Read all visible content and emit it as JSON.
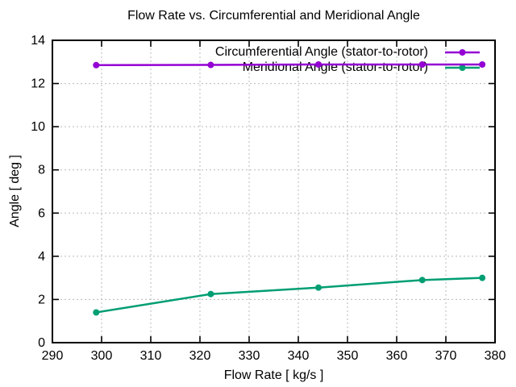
{
  "chart_data": {
    "type": "line",
    "title": "Flow Rate vs. Circumferential and Meridional Angle",
    "xlabel": "Flow Rate [ kg/s ]",
    "ylabel": "Angle [ deg ]",
    "xlim": [
      290,
      380
    ],
    "ylim": [
      0,
      14
    ],
    "x_ticks": [
      290,
      300,
      310,
      320,
      330,
      340,
      350,
      360,
      370,
      380
    ],
    "y_ticks": [
      0,
      2,
      4,
      6,
      8,
      10,
      12,
      14
    ],
    "grid": true,
    "legend_position": "top-right inside",
    "x": [
      298.9,
      322.2,
      344.1,
      365.2,
      377.4
    ],
    "series": [
      {
        "name": "Circumferential Angle (stator-to-rotor)",
        "color": "#9400d3",
        "marker": "circle",
        "values": [
          12.85,
          12.86,
          12.88,
          12.88,
          12.88
        ]
      },
      {
        "name": "Meridional Angle (stator-to-rotor)",
        "color": "#009e73",
        "marker": "circle",
        "values": [
          1.4,
          2.25,
          2.55,
          2.9,
          3.0
        ]
      }
    ]
  }
}
